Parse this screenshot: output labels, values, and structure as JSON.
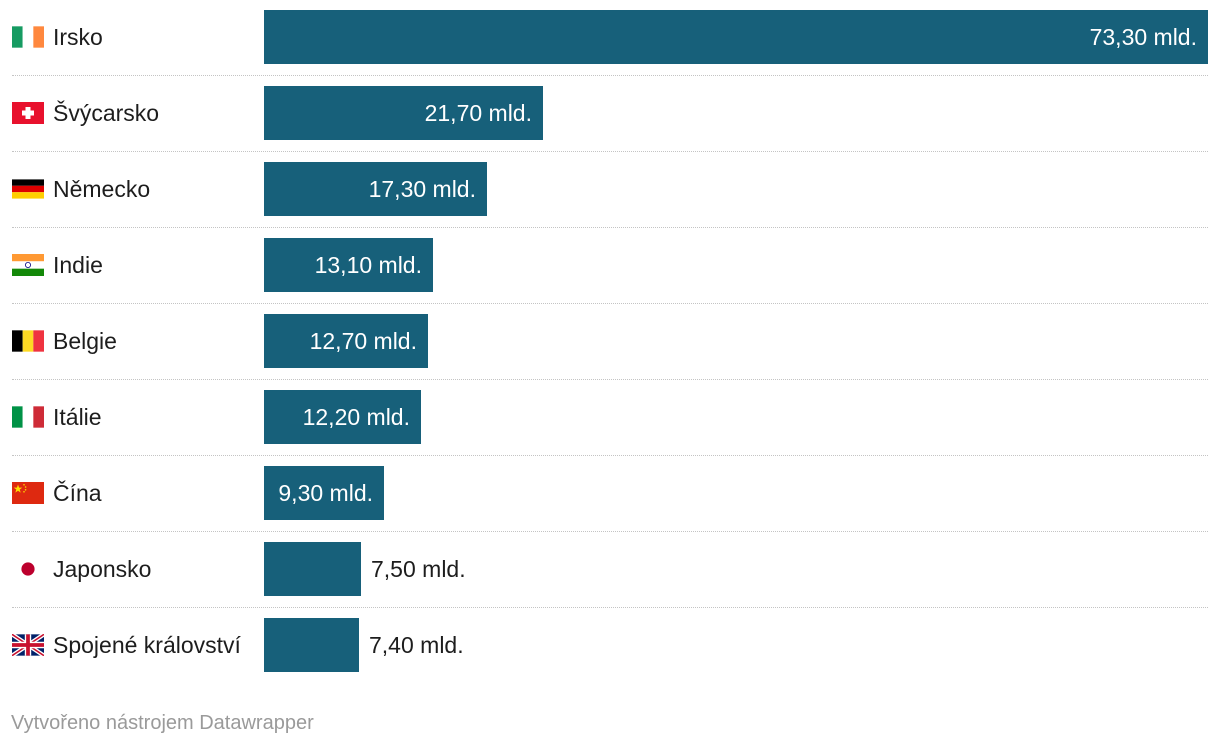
{
  "chart_data": {
    "type": "bar",
    "orientation": "horizontal",
    "categories": [
      "Irsko",
      "Švýcarsko",
      "Německo",
      "Indie",
      "Belgie",
      "Itálie",
      "Čína",
      "Japonsko",
      "Spojené království"
    ],
    "values": [
      73.3,
      21.7,
      17.3,
      13.1,
      12.7,
      12.2,
      9.3,
      7.5,
      7.4
    ],
    "value_labels": [
      "73,30 mld.",
      "21,70 mld.",
      "17,30 mld.",
      "13,10 mld.",
      "12,70 mld.",
      "12,20 mld.",
      "9,30 mld.",
      "7,50 mld.",
      "7,40 mld."
    ],
    "flags": [
      "ireland-flag-icon",
      "switzerland-flag-icon",
      "germany-flag-icon",
      "india-flag-icon",
      "belgium-flag-icon",
      "italy-flag-icon",
      "china-flag-icon",
      "japan-flag-icon",
      "uk-flag-icon"
    ],
    "xlim": [
      0,
      73.3
    ],
    "bar_color": "#17607a",
    "title": "",
    "xlabel": "",
    "ylabel": ""
  },
  "footer": {
    "credit": "Vytvořeno nástrojem Datawrapper"
  }
}
